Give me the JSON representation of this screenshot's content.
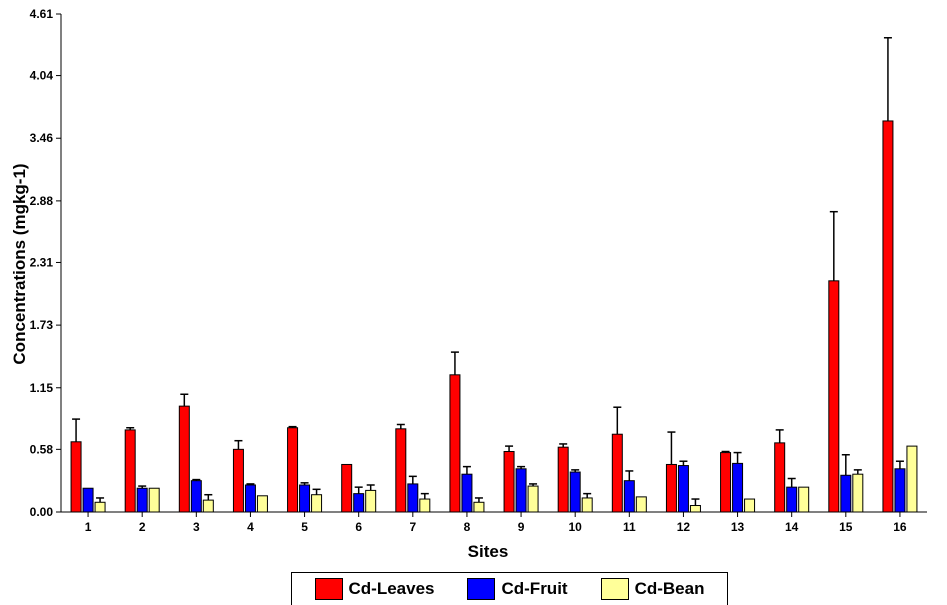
{
  "chart_data": {
    "type": "bar",
    "xlabel": "Sites",
    "ylabel": "Concentrations (mgkg-1)",
    "ylim": [
      0,
      4.61
    ],
    "yticks": [
      "0.00",
      "0.58",
      "1.15",
      "1.73",
      "2.31",
      "2.88",
      "3.46",
      "4.04",
      "4.61"
    ],
    "categories": [
      "1",
      "2",
      "3",
      "4",
      "5",
      "6",
      "7",
      "8",
      "9",
      "10",
      "11",
      "12",
      "13",
      "14",
      "15",
      "16"
    ],
    "legend_position": "bottom",
    "series": [
      {
        "name": "Cd-Leaves",
        "color": "#ff0000",
        "values": [
          0.65,
          0.76,
          0.98,
          0.58,
          0.78,
          0.44,
          0.77,
          1.27,
          0.56,
          0.6,
          0.72,
          0.44,
          0.55,
          0.64,
          2.14,
          3.62
        ],
        "errors": [
          0.21,
          0.02,
          0.11,
          0.08,
          0.01,
          0.0,
          0.04,
          0.21,
          0.05,
          0.03,
          0.25,
          0.3,
          0.01,
          0.12,
          0.64,
          0.77
        ]
      },
      {
        "name": "Cd-Fruit",
        "color": "#0000ff",
        "values": [
          0.22,
          0.22,
          0.29,
          0.25,
          0.25,
          0.17,
          0.26,
          0.35,
          0.4,
          0.37,
          0.29,
          0.43,
          0.45,
          0.23,
          0.34,
          0.4
        ],
        "errors": [
          0.0,
          0.02,
          0.01,
          0.01,
          0.02,
          0.06,
          0.07,
          0.07,
          0.02,
          0.02,
          0.09,
          0.04,
          0.1,
          0.08,
          0.19,
          0.07
        ]
      },
      {
        "name": "Cd-Bean",
        "color": "#ffff99",
        "values": [
          0.09,
          0.22,
          0.11,
          0.15,
          0.16,
          0.2,
          0.12,
          0.09,
          0.24,
          0.13,
          0.14,
          0.06,
          0.12,
          0.23,
          0.35,
          0.61
        ],
        "errors": [
          0.04,
          0.0,
          0.05,
          0.0,
          0.05,
          0.05,
          0.05,
          0.04,
          0.02,
          0.04,
          0.0,
          0.06,
          0.0,
          0.0,
          0.04,
          0.0
        ]
      }
    ]
  }
}
